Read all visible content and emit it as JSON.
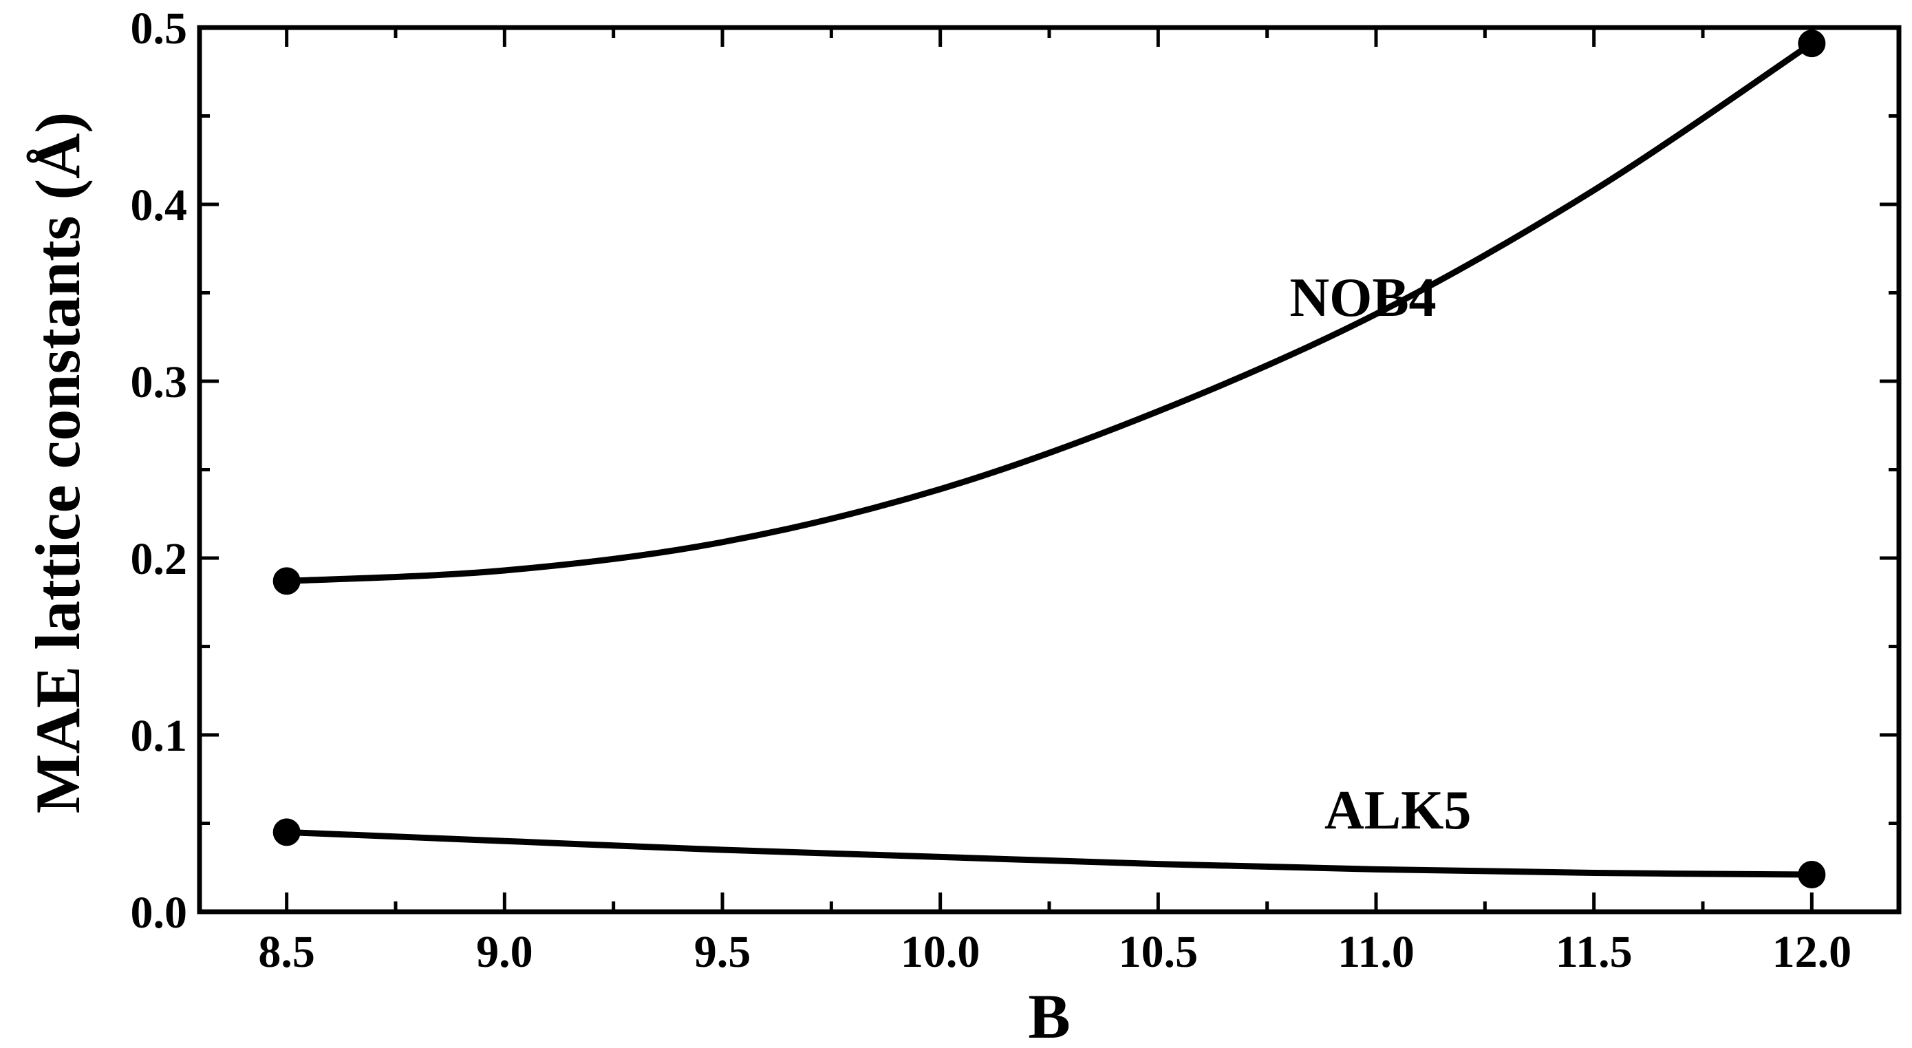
{
  "chart_data": {
    "type": "line",
    "title": "",
    "xlabel": "B",
    "ylabel": "MAE lattice constants (Å)",
    "xlim": [
      8.3,
      12.2
    ],
    "ylim": [
      0.0,
      0.5
    ],
    "x_ticks": [
      8.5,
      9.0,
      9.5,
      10.0,
      10.5,
      11.0,
      11.5,
      12.0
    ],
    "x_tick_labels": [
      "8.5",
      "9.0",
      "9.5",
      "10.0",
      "10.5",
      "11.0",
      "11.5",
      "12.0"
    ],
    "y_ticks": [
      0.0,
      0.1,
      0.2,
      0.3,
      0.4,
      0.5
    ],
    "y_tick_labels": [
      "0.0",
      "0.1",
      "0.2",
      "0.3",
      "0.4",
      "0.5"
    ],
    "grid": false,
    "legend": "none",
    "line_color": "#000000",
    "series": [
      {
        "name": "NOB4",
        "points": [
          {
            "x": 8.5,
            "y": 0.187
          },
          {
            "x": 12.0,
            "y": 0.491
          }
        ],
        "curve": [
          {
            "x": 8.5,
            "y": 0.187
          },
          {
            "x": 9.0,
            "y": 0.193
          },
          {
            "x": 9.5,
            "y": 0.209
          },
          {
            "x": 10.0,
            "y": 0.239
          },
          {
            "x": 10.5,
            "y": 0.283
          },
          {
            "x": 11.0,
            "y": 0.338
          },
          {
            "x": 11.5,
            "y": 0.408
          },
          {
            "x": 12.0,
            "y": 0.491
          }
        ],
        "label": "NOB4",
        "label_pos": {
          "x": 10.97,
          "y": 0.337
        }
      },
      {
        "name": "ALK5",
        "points": [
          {
            "x": 8.5,
            "y": 0.045
          },
          {
            "x": 12.0,
            "y": 0.021
          }
        ],
        "curve": [
          {
            "x": 8.5,
            "y": 0.045
          },
          {
            "x": 9.0,
            "y": 0.04
          },
          {
            "x": 9.5,
            "y": 0.035
          },
          {
            "x": 10.0,
            "y": 0.031
          },
          {
            "x": 10.5,
            "y": 0.027
          },
          {
            "x": 11.0,
            "y": 0.024
          },
          {
            "x": 11.5,
            "y": 0.022
          },
          {
            "x": 12.0,
            "y": 0.021
          }
        ],
        "label": "ALK5",
        "label_pos": {
          "x": 11.05,
          "y": 0.047
        }
      }
    ]
  }
}
